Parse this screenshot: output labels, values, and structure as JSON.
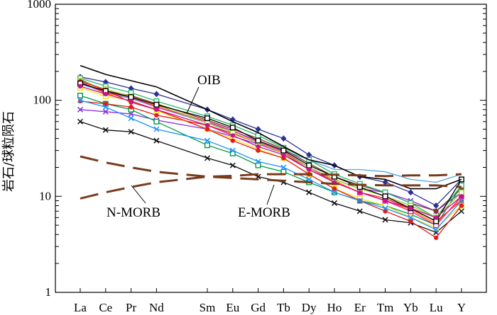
{
  "chart_data": {
    "type": "line",
    "yscale": "log",
    "ylim": [
      1,
      1000
    ],
    "ylabel": "岩石/球粒陨石",
    "xlabel": "",
    "y_ticks": [
      "1",
      "10",
      "100",
      "1000"
    ],
    "categories": [
      "La",
      "Ce",
      "Pr",
      "Nd",
      "Sm",
      "Eu",
      "Gd",
      "Tb",
      "Dy",
      "Ho",
      "Er",
      "Tm",
      "Yb",
      "Lu",
      "Y"
    ],
    "category_slots": [
      0,
      1,
      2,
      3,
      5,
      6,
      7,
      8,
      9,
      10,
      11,
      12,
      13,
      14,
      15
    ],
    "annotations": [
      {
        "text": "OIB",
        "target_series": "OIB"
      },
      {
        "text": "N-MORB",
        "target_series": "N-MORB"
      },
      {
        "text": "E-MORB",
        "target_series": "E-MORB"
      }
    ],
    "reference_series": [
      {
        "name": "OIB",
        "color": "#000000",
        "dash": false,
        "values": [
          230,
          186,
          160,
          138,
          80,
          60,
          46,
          33,
          24,
          21,
          16,
          15,
          12,
          12,
          15
        ]
      },
      {
        "name": "N-MORB",
        "color": "#7a3b1d",
        "dash": true,
        "values": [
          9.5,
          11,
          12.5,
          14,
          16,
          16.3,
          17,
          17,
          17,
          16.8,
          16.5,
          16.2,
          16.5,
          16.5,
          17
        ]
      },
      {
        "name": "E-MORB",
        "color": "#7a3b1d",
        "dash": true,
        "values": [
          26,
          22.5,
          20,
          18,
          16,
          15.5,
          15,
          14.5,
          14,
          13.5,
          13.2,
          13,
          13,
          13,
          12.5
        ]
      }
    ],
    "series": [
      {
        "color": "#2e3192",
        "marker": "diamond",
        "values": [
          175,
          155,
          133,
          116,
          80,
          63,
          50,
          40,
          27,
          21,
          16,
          14,
          11,
          8,
          15
        ]
      },
      {
        "color": "#111111",
        "marker": "cross",
        "values": [
          60,
          49,
          47,
          38,
          25,
          21,
          16,
          14,
          11,
          8.5,
          7,
          5.7,
          5.3,
          4.2,
          7
        ]
      },
      {
        "color": "#8a2be2",
        "marker": "cross",
        "values": [
          80,
          76,
          72,
          62,
          50,
          42,
          35,
          28,
          20,
          15,
          12,
          11,
          9,
          7,
          11
        ]
      },
      {
        "color": "#009a44",
        "marker": "square",
        "values": [
          112,
          92,
          80,
          60,
          34,
          28,
          21,
          18,
          14,
          11,
          9,
          8,
          6.5,
          5,
          13
        ]
      },
      {
        "color": "#e41a1c",
        "marker": "circle",
        "values": [
          98,
          92,
          85,
          70,
          55,
          45,
          36,
          28,
          19,
          14,
          11,
          9.5,
          7.5,
          5.5,
          9
        ]
      },
      {
        "color": "#f5e11a",
        "marker": "square",
        "values": [
          135,
          110,
          100,
          78,
          50,
          40,
          31,
          25,
          17,
          12,
          9.5,
          8,
          6,
          4.7,
          8
        ]
      },
      {
        "color": "#ff7f00",
        "marker": "circle",
        "values": [
          152,
          118,
          105,
          88,
          60,
          48,
          37,
          29,
          20,
          14.5,
          11,
          9,
          7.3,
          5.2,
          9.5
        ]
      },
      {
        "color": "#4fa3e0",
        "marker": "none",
        "values": [
          148,
          122,
          104,
          85,
          58,
          48,
          38,
          30,
          24,
          19,
          19,
          18,
          15,
          14,
          17
        ]
      },
      {
        "color": "#7a3b1d",
        "marker": "diamond",
        "values": [
          165,
          125,
          112,
          92,
          62,
          50,
          40,
          31,
          22,
          16,
          13,
          11,
          8.5,
          7,
          12
        ]
      },
      {
        "color": "#2bb673",
        "marker": "square",
        "values": [
          170,
          140,
          120,
          98,
          68,
          55,
          43,
          32,
          24,
          17,
          13.5,
          11,
          8.5,
          6,
          13
        ]
      },
      {
        "color": "#ff1493",
        "marker": "square",
        "values": [
          155,
          120,
          108,
          85,
          60,
          48,
          37,
          29,
          20,
          14,
          11,
          9,
          7,
          5,
          10
        ]
      },
      {
        "color": "#9acd32",
        "marker": "square",
        "values": [
          160,
          130,
          110,
          90,
          58,
          46,
          36,
          28,
          20,
          15,
          12,
          10,
          8,
          6,
          11
        ]
      },
      {
        "color": "#e41a1c",
        "marker": "circle",
        "values": [
          158,
          128,
          95,
          80,
          50,
          38,
          30,
          25,
          17,
          12,
          9,
          7,
          5.5,
          3.7,
          8
        ]
      },
      {
        "color": "#000000",
        "marker": "square",
        "values": [
          150,
          125,
          108,
          90,
          65,
          52,
          38,
          30,
          21,
          16,
          12.5,
          10,
          7.5,
          5.5,
          15
        ]
      },
      {
        "color": "#c71585",
        "marker": "circle",
        "values": [
          140,
          116,
          98,
          80,
          55,
          43,
          33,
          27,
          19,
          14,
          11,
          9,
          7.5,
          6,
          10
        ]
      },
      {
        "color": "#1e90ff",
        "marker": "cross",
        "values": [
          100,
          85,
          65,
          50,
          38,
          30,
          23,
          20,
          15,
          11,
          9,
          7.5,
          6,
          4.5,
          9
        ]
      }
    ]
  }
}
